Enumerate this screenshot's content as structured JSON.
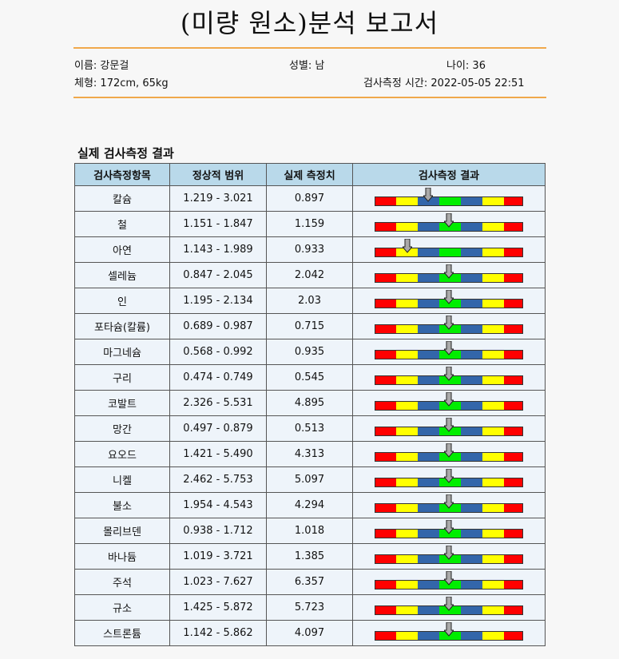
{
  "report": {
    "title": "(미량 원소)분석 보고서",
    "name": "이름: 강문걸",
    "gender": "성별: 남",
    "age": "나이: 36",
    "body": "체형: 172cm, 65kg",
    "time": "검사측정 시간: 2022-05-05 22:51"
  },
  "section_title": "실제 검사측정 결과",
  "table": {
    "headers": [
      "검사측정항목",
      "정상적 범위",
      "실제 측정치",
      "검사측정 결과"
    ],
    "rows": [
      {
        "item": "칼슘",
        "range": "1.219 - 3.021",
        "value": "0.897",
        "level": 0.36
      },
      {
        "item": "철",
        "range": "1.151 - 1.847",
        "value": "1.159",
        "level": 0.5
      },
      {
        "item": "아연",
        "range": "1.143 - 1.989",
        "value": "0.933",
        "level": 0.22
      },
      {
        "item": "셀레늄",
        "range": "0.847 - 2.045",
        "value": "2.042",
        "level": 0.5
      },
      {
        "item": "인",
        "range": "1.195 - 2.134",
        "value": "2.03",
        "level": 0.5
      },
      {
        "item": "포타슘(칼륨)",
        "range": "0.689 - 0.987",
        "value": "0.715",
        "level": 0.5
      },
      {
        "item": "마그네슘",
        "range": "0.568 - 0.992",
        "value": "0.935",
        "level": 0.5
      },
      {
        "item": "구리",
        "range": "0.474 - 0.749",
        "value": "0.545",
        "level": 0.5
      },
      {
        "item": "코발트",
        "range": "2.326 - 5.531",
        "value": "4.895",
        "level": 0.5
      },
      {
        "item": "망간",
        "range": "0.497 - 0.879",
        "value": "0.513",
        "level": 0.5
      },
      {
        "item": "요오드",
        "range": "1.421 - 5.490",
        "value": "4.313",
        "level": 0.5
      },
      {
        "item": "니켈",
        "range": "2.462 - 5.753",
        "value": "5.097",
        "level": 0.5
      },
      {
        "item": "불소",
        "range": "1.954 - 4.543",
        "value": "4.294",
        "level": 0.5
      },
      {
        "item": "몰리브덴",
        "range": "0.938 - 1.712",
        "value": "1.018",
        "level": 0.5
      },
      {
        "item": "바나듐",
        "range": "1.019 - 3.721",
        "value": "1.385",
        "level": 0.5
      },
      {
        "item": "주석",
        "range": "1.023 - 7.627",
        "value": "6.357",
        "level": 0.5
      },
      {
        "item": "규소",
        "range": "1.425 - 5.872",
        "value": "5.723",
        "level": 0.5
      },
      {
        "item": "스트론튬",
        "range": "1.142 - 5.862",
        "value": "4.097",
        "level": 0.5
      }
    ]
  },
  "colors": {
    "rule": "#f0a84b",
    "header_bg": "#b9d9ea",
    "cell_bg": "#eef4fa",
    "scale": [
      "#ff0000",
      "#ffff00",
      "#3366aa",
      "#00ee00",
      "#3366aa",
      "#ffff00",
      "#ff0000"
    ]
  }
}
